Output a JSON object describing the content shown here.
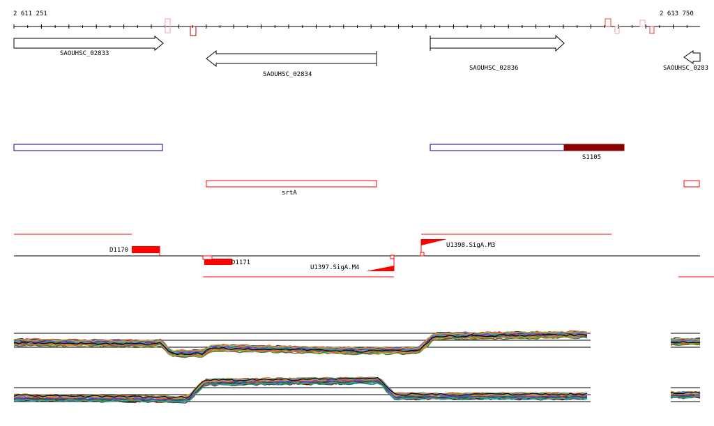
{
  "coordinates": {
    "start": "2 611 251",
    "end": "2 613 750"
  },
  "genes": [
    {
      "id": "SAOUHSC_02833",
      "strand": "+"
    },
    {
      "id": "SAOUHSC_02834",
      "strand": "-"
    },
    {
      "id": "SAOUHSC_02836",
      "strand": "+"
    },
    {
      "id": "SAOUHSC_0283",
      "strand": "-"
    }
  ],
  "annotations": {
    "srtA": "srtA",
    "s1105": "S1105"
  },
  "segments": {
    "d1170": "D1170",
    "d1171": "D1171"
  },
  "promoters": {
    "u1397": "U1397.SigA.M4",
    "u1398": "U1398.SigA.M3"
  },
  "colors": {
    "track_red": "#ff0000",
    "feature_blue": "#000080",
    "feature_darkred": "#8b0000",
    "axis": "#000000"
  },
  "expression_panels": [
    {
      "name": "expression-profile-upper",
      "series_count": 30
    },
    {
      "name": "expression-profile-lower",
      "series_count": 30
    }
  ]
}
